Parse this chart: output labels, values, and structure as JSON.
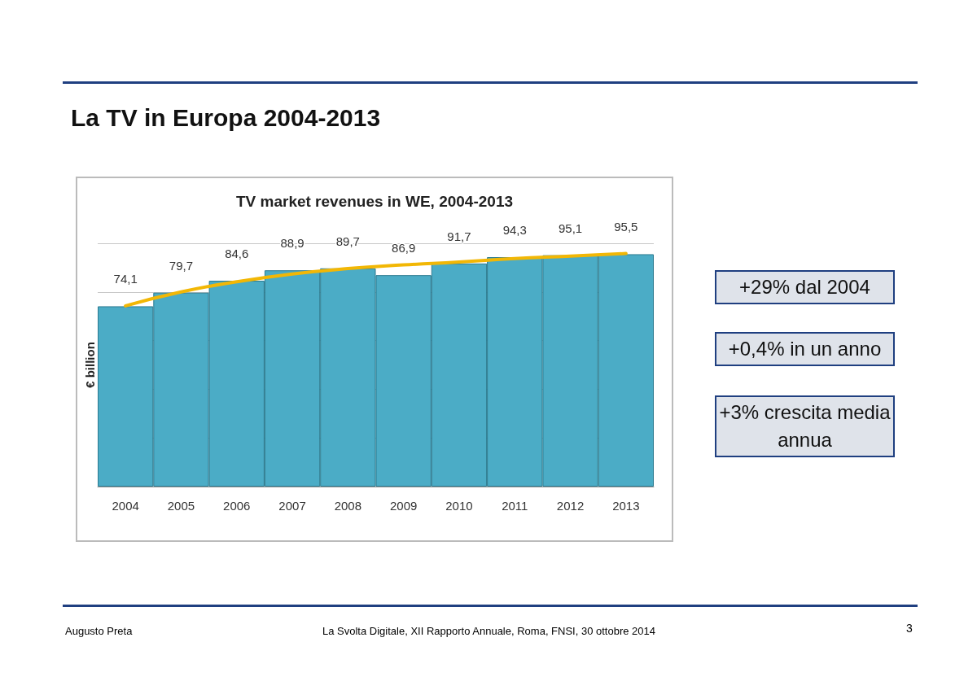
{
  "chart_data": {
    "type": "bar",
    "title": "La TV in Europa 2004-2013",
    "subtitle": "TV market revenues in WE, 2004-2013",
    "ylabel": "€ billion",
    "categories": [
      "2004",
      "2005",
      "2006",
      "2007",
      "2008",
      "2009",
      "2010",
      "2011",
      "2012",
      "2013"
    ],
    "series": [
      {
        "color": "#4bacc6",
        "values": [
          74.1,
          79.7,
          84.6,
          88.9,
          89.7,
          86.9,
          91.7,
          94.3,
          95.1,
          95.5
        ],
        "value_labels": [
          "74,1",
          "79,7",
          "84,6",
          "88,9",
          "89,7",
          "86,9",
          "91,7",
          "94,3",
          "95,1",
          "95,5"
        ]
      },
      {
        "type": "line",
        "color": "#f2b705",
        "values": [
          74.3,
          80.0,
          84.2,
          87.4,
          89.6,
          91.1,
          92.3,
          93.7,
          94.7,
          95.8
        ]
      }
    ],
    "tick_labels": "x",
    "grid": "y",
    "marker": "none",
    "annotations": [
      "+29% dal 2004",
      "+0,4% in un anno",
      "+3% crescita media annua",
      "Augusto Preta",
      "La Svolta Digitale, XII Rapporto Annuale, Roma, FNSI, 30 ottobre 2014",
      "3"
    ]
  }
}
